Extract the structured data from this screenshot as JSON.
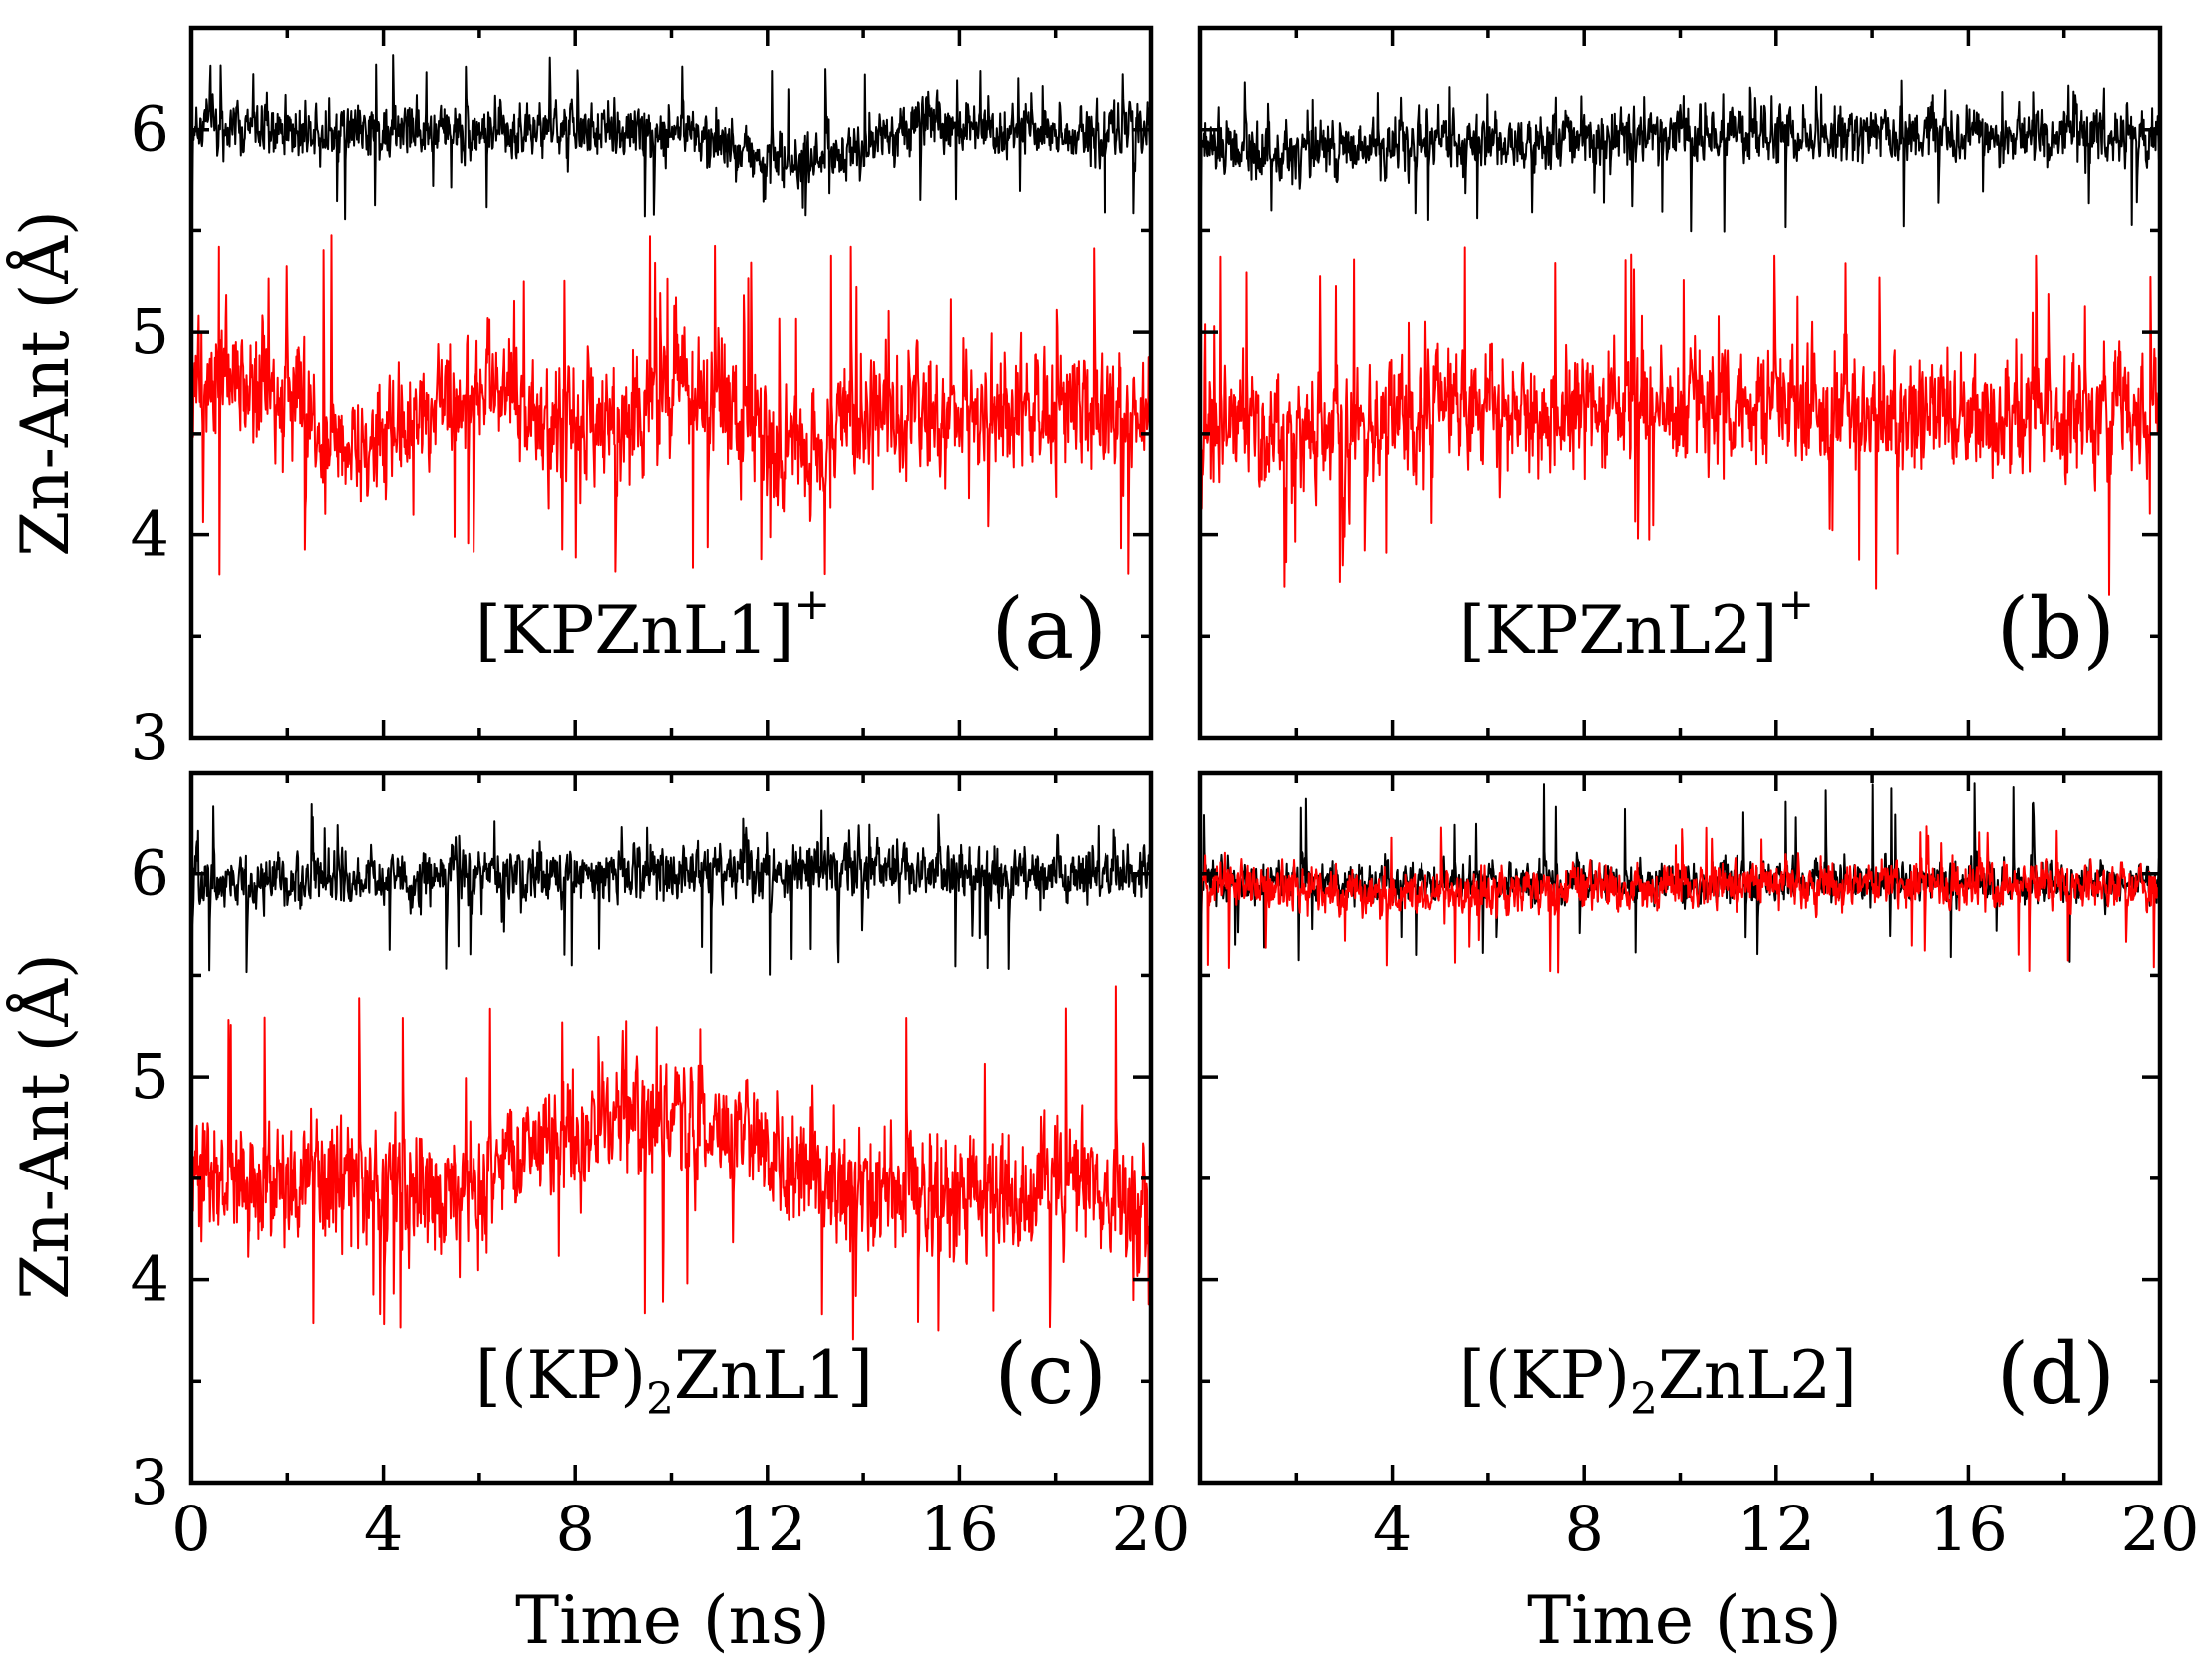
{
  "chart_data": {
    "type": "line",
    "layout": "2x2 grid",
    "shared_xlabel": "Time  (ns)",
    "shared_ylabel": "Zn-Ant  (Å)",
    "xlim": [
      0,
      20
    ],
    "ylim": [
      3,
      6.5
    ],
    "xticks": [
      0,
      4,
      8,
      12,
      16,
      20
    ],
    "xtick_labels": [
      "0",
      "4",
      "8",
      "12",
      "16",
      "20"
    ],
    "yticks": [
      3,
      4,
      5,
      6
    ],
    "ytick_labels": [
      "3",
      "4",
      "5",
      "6"
    ],
    "series_style": [
      {
        "name": "black series",
        "color": "#000000"
      },
      {
        "name": "red series",
        "color": "#ff0000"
      }
    ],
    "panels": [
      {
        "id": "a",
        "letter": "(a)",
        "name_main": "[KPZnL1]",
        "name_sup": "+",
        "series": [
          {
            "name": "black",
            "color": "#000000",
            "mean": 5.97,
            "amplitude": 0.11,
            "spike_range": [
              5.55,
              6.38
            ],
            "trend": [
              [
                0,
                6.02
              ],
              [
                5,
                5.99
              ],
              [
                10,
                6.0
              ],
              [
                12.7,
                5.83
              ],
              [
                15,
                6.02
              ],
              [
                20,
                5.98
              ]
            ]
          },
          {
            "name": "red",
            "color": "#ff0000",
            "mean": 4.62,
            "amplitude": 0.24,
            "spike_range": [
              3.72,
              5.5
            ],
            "trend": [
              [
                0,
                4.75
              ],
              [
                2,
                4.72
              ],
              [
                3.2,
                4.35
              ],
              [
                4.0,
                4.48
              ],
              [
                6,
                4.72
              ],
              [
                8.5,
                4.5
              ],
              [
                10,
                4.72
              ],
              [
                13,
                4.38
              ],
              [
                14,
                4.6
              ],
              [
                20,
                4.62
              ]
            ]
          }
        ]
      },
      {
        "id": "b",
        "letter": "(b)",
        "name_main": "[KPZnL2]",
        "name_sup": "+",
        "series": [
          {
            "name": "black",
            "color": "#000000",
            "mean": 5.95,
            "amplitude": 0.11,
            "spike_range": [
              5.48,
              6.25
            ],
            "trend": [
              [
                0,
                5.92
              ],
              [
                2,
                5.88
              ],
              [
                5,
                5.95
              ],
              [
                10,
                5.97
              ],
              [
                20,
                5.96
              ]
            ]
          },
          {
            "name": "red",
            "color": "#ff0000",
            "mean": 4.6,
            "amplitude": 0.23,
            "spike_range": [
              3.7,
              5.42
            ],
            "trend": [
              [
                0,
                4.55
              ],
              [
                3,
                4.5
              ],
              [
                5,
                4.6
              ],
              [
                10,
                4.65
              ],
              [
                15,
                4.6
              ],
              [
                20,
                4.6
              ]
            ]
          }
        ]
      },
      {
        "id": "c",
        "letter": "(c)",
        "name_main": "[(KP)",
        "name_sub": "2",
        "name_after": "ZnL1]",
        "series": [
          {
            "name": "black",
            "color": "#000000",
            "mean": 5.98,
            "amplitude": 0.11,
            "spike_range": [
              5.5,
              6.35
            ],
            "trend": [
              [
                0,
                5.95
              ],
              [
                5,
                5.98
              ],
              [
                10,
                6.02
              ],
              [
                12.5,
                6.02
              ],
              [
                20,
                5.98
              ]
            ]
          },
          {
            "name": "red",
            "color": "#ff0000",
            "mean": 4.55,
            "amplitude": 0.24,
            "spike_range": [
              3.7,
              5.45
            ],
            "trend": [
              [
                0,
                4.5
              ],
              [
                3,
                4.48
              ],
              [
                5.5,
                4.4
              ],
              [
                7.5,
                4.7
              ],
              [
                9,
                4.82
              ],
              [
                11.5,
                4.72
              ],
              [
                13,
                4.45
              ],
              [
                16,
                4.4
              ],
              [
                18,
                4.5
              ],
              [
                20,
                4.35
              ]
            ]
          }
        ]
      },
      {
        "id": "d",
        "letter": "(d)",
        "name_main": "[(KP)",
        "name_sub": "2",
        "name_after": "ZnL2]",
        "series": [
          {
            "name": "black",
            "color": "#000000",
            "mean": 5.95,
            "amplitude": 0.08,
            "spike_range": [
              5.55,
              6.45
            ],
            "trend": [
              [
                0,
                5.96
              ],
              [
                10,
                5.95
              ],
              [
                20,
                5.96
              ]
            ]
          },
          {
            "name": "red",
            "color": "#ff0000",
            "mean": 5.93,
            "amplitude": 0.09,
            "spike_range": [
              5.5,
              6.25
            ],
            "trend": [
              [
                0,
                5.96
              ],
              [
                4,
                5.9
              ],
              [
                10,
                5.95
              ],
              [
                20,
                5.94
              ]
            ]
          }
        ]
      }
    ]
  }
}
